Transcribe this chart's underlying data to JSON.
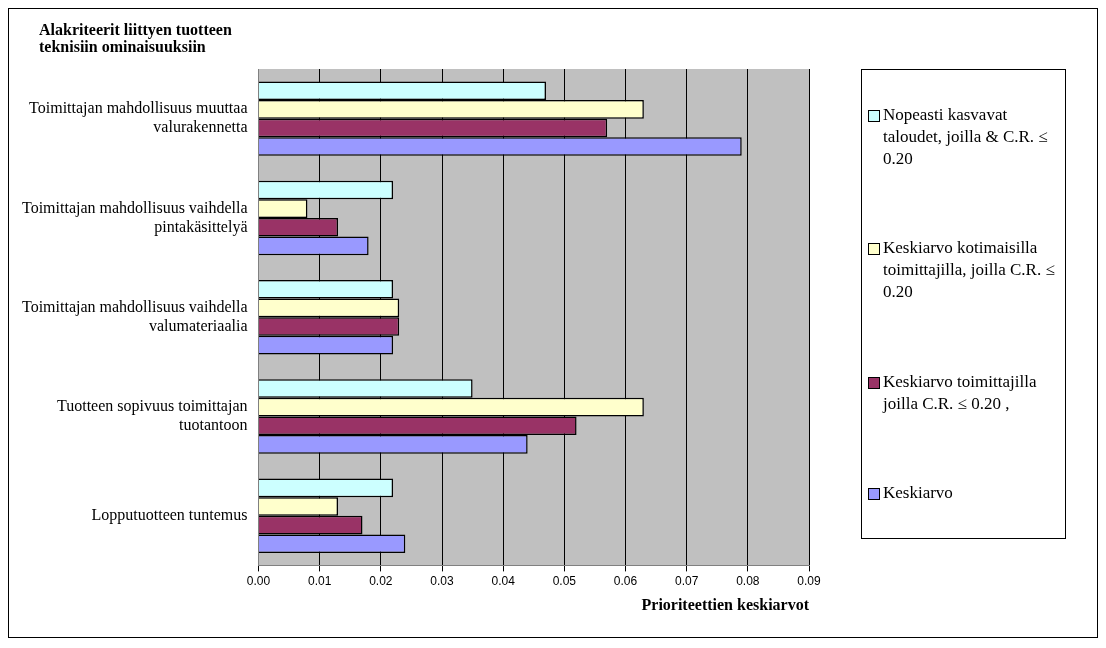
{
  "chart_data": {
    "type": "bar",
    "orientation": "horizontal",
    "ylabel": "Alakriteerit liittyen tuotteen teknisiin ominaisuuksiin",
    "xlabel": "Prioriteettien keskiarvot",
    "categories": [
      "Toimittajan mahdollisuus muuttaa valurakennetta",
      "Toimittajan mahdollisuus vaihdella pintakäsittelyä",
      "Toimittajan mahdollisuus vaihdella valumateriaalia",
      "Tuotteen sopivuus toimittajan tuotantoon",
      "Lopputuotteen tuntemus"
    ],
    "series": [
      {
        "name": "Nopeasti kasvavat taloudet, joilla & C.R. ≤ 0.20",
        "color": "#ccffff",
        "values": [
          0.047,
          0.022,
          0.022,
          0.035,
          0.022
        ]
      },
      {
        "name": "Keskiarvo kotimaisilla toimittajilla, joilla C.R. ≤ 0.20",
        "color": "#ffffcc",
        "values": [
          0.063,
          0.008,
          0.023,
          0.063,
          0.013
        ]
      },
      {
        "name": "Keskiarvo toimittajilla joilla C.R. ≤ 0.20 ,",
        "color": "#993366",
        "values": [
          0.057,
          0.013,
          0.023,
          0.052,
          0.017
        ]
      },
      {
        "name": "Keskiarvo",
        "color": "#9999ff",
        "values": [
          0.079,
          0.018,
          0.022,
          0.044,
          0.024
        ]
      }
    ],
    "xlim": [
      0,
      0.09
    ],
    "xticks": [
      {
        "value": 0,
        "label": "0.00"
      },
      {
        "value": 0.01,
        "label": "0.01"
      },
      {
        "value": 0.02,
        "label": "0.02"
      },
      {
        "value": 0.03,
        "label": "0.03"
      },
      {
        "value": 0.04,
        "label": "0.04"
      },
      {
        "value": 0.05,
        "label": "0.05"
      },
      {
        "value": 0.06,
        "label": "0.06"
      },
      {
        "value": 0.07,
        "label": "0.07"
      },
      {
        "value": 0.08,
        "label": "0.08"
      },
      {
        "value": 0.09,
        "label": "0.09"
      }
    ],
    "grid": "x",
    "legend": "right"
  }
}
